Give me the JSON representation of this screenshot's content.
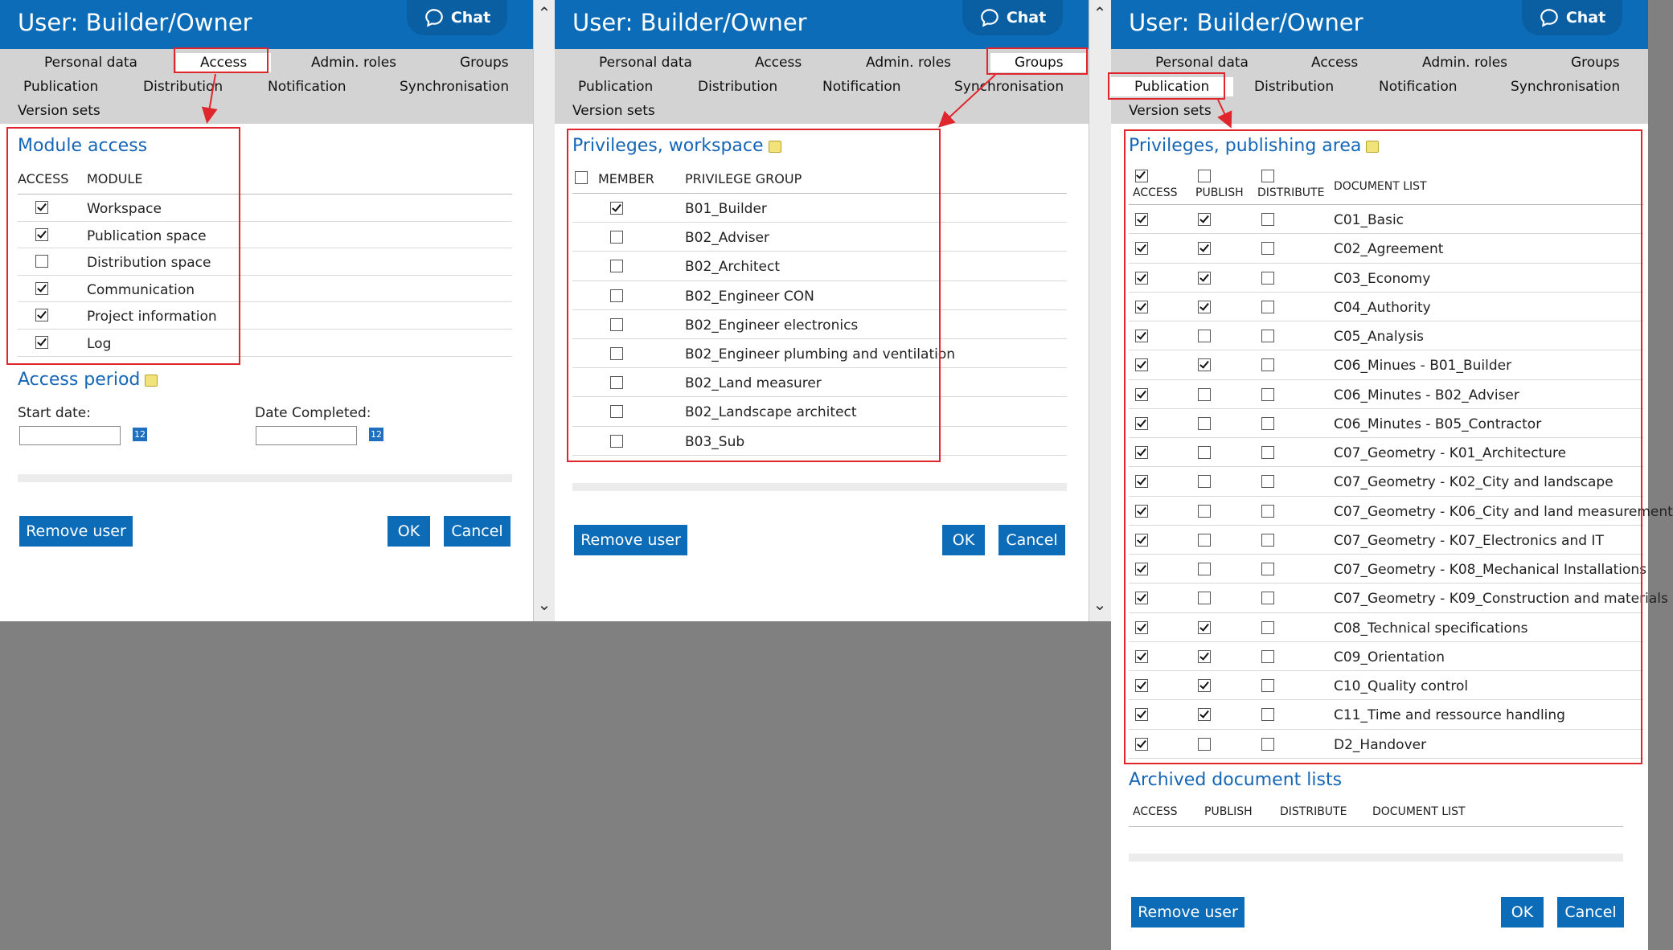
{
  "title": "User: Builder/Owner",
  "chat_label": "Chat",
  "tabs": {
    "personal_data": "Personal data",
    "access": "Access",
    "admin_roles": "Admin. roles",
    "groups": "Groups",
    "publication": "Publication",
    "distribution": "Distribution",
    "notification": "Notification",
    "synchronisation": "Synchronisation",
    "version_sets": "Version sets"
  },
  "access_panel": {
    "section_title": "Module access",
    "col_access": "ACCESS",
    "col_module": "MODULE",
    "modules": [
      {
        "name": "Workspace",
        "checked": true
      },
      {
        "name": "Publication space",
        "checked": true
      },
      {
        "name": "Distribution space",
        "checked": false
      },
      {
        "name": "Communication",
        "checked": true
      },
      {
        "name": "Project information",
        "checked": true
      },
      {
        "name": "Log",
        "checked": true
      }
    ],
    "period_title": "Access period",
    "start_label": "Start date:",
    "end_label": "Date Completed:",
    "cal_icon_text": "12"
  },
  "groups_panel": {
    "section_title": "Privileges, workspace",
    "col_member": "MEMBER",
    "col_group": "PRIVILEGE GROUP",
    "groups": [
      {
        "name": "B01_Builder",
        "checked": true
      },
      {
        "name": "B02_Adviser",
        "checked": false
      },
      {
        "name": "B02_Architect",
        "checked": false
      },
      {
        "name": "B02_Engineer CON",
        "checked": false
      },
      {
        "name": "B02_Engineer electronics",
        "checked": false
      },
      {
        "name": "B02_Engineer plumbing and ventilation",
        "checked": false
      },
      {
        "name": "B02_Land measurer",
        "checked": false
      },
      {
        "name": "B02_Landscape architect",
        "checked": false
      },
      {
        "name": "B03_Sub",
        "checked": false
      }
    ]
  },
  "publication_panel": {
    "section_title": "Privileges, publishing area",
    "col_access": "ACCESS",
    "col_publish": "PUBLISH",
    "col_distribute": "DISTRIBUTE",
    "col_doclist": "DOCUMENT LIST",
    "lists": [
      {
        "name": "C01_Basic",
        "access": true,
        "publish": true,
        "distribute": false
      },
      {
        "name": "C02_Agreement",
        "access": true,
        "publish": true,
        "distribute": false
      },
      {
        "name": "C03_Economy",
        "access": true,
        "publish": true,
        "distribute": false
      },
      {
        "name": "C04_Authority",
        "access": true,
        "publish": true,
        "distribute": false
      },
      {
        "name": "C05_Analysis",
        "access": true,
        "publish": false,
        "distribute": false
      },
      {
        "name": "C06_Minues - B01_Builder",
        "access": true,
        "publish": true,
        "distribute": false
      },
      {
        "name": "C06_Minutes - B02_Adviser",
        "access": true,
        "publish": false,
        "distribute": false
      },
      {
        "name": "C06_Minutes - B05_Contractor",
        "access": true,
        "publish": false,
        "distribute": false
      },
      {
        "name": "C07_Geometry - K01_Architecture",
        "access": true,
        "publish": false,
        "distribute": false
      },
      {
        "name": "C07_Geometry - K02_City and landscape",
        "access": true,
        "publish": false,
        "distribute": false
      },
      {
        "name": "C07_Geometry - K06_City and land measurement",
        "access": true,
        "publish": false,
        "distribute": false
      },
      {
        "name": "C07_Geometry - K07_Electronics and IT",
        "access": true,
        "publish": false,
        "distribute": false
      },
      {
        "name": "C07_Geometry - K08_Mechanical Installations",
        "access": true,
        "publish": false,
        "distribute": false
      },
      {
        "name": "C07_Geometry - K09_Construction and materials",
        "access": true,
        "publish": false,
        "distribute": false
      },
      {
        "name": "C08_Technical specifications",
        "access": true,
        "publish": true,
        "distribute": false
      },
      {
        "name": "C09_Orientation",
        "access": true,
        "publish": true,
        "distribute": false
      },
      {
        "name": "C10_Quality control",
        "access": true,
        "publish": true,
        "distribute": false
      },
      {
        "name": "C11_Time and ressource handling",
        "access": true,
        "publish": true,
        "distribute": false
      },
      {
        "name": "D2_Handover",
        "access": true,
        "publish": false,
        "distribute": false
      }
    ],
    "archived_title": "Archived document lists",
    "archived_cols": {
      "access": "ACCESS",
      "publish": "PUBLISH",
      "distribute": "DISTRIBUTE",
      "doclist": "DOCUMENT LIST"
    }
  },
  "buttons": {
    "remove_user": "Remove user",
    "ok": "OK",
    "cancel": "Cancel"
  },
  "colors": {
    "header": "#0c6cb8",
    "accent": "#1566b7",
    "highlight": "#e0262d"
  }
}
